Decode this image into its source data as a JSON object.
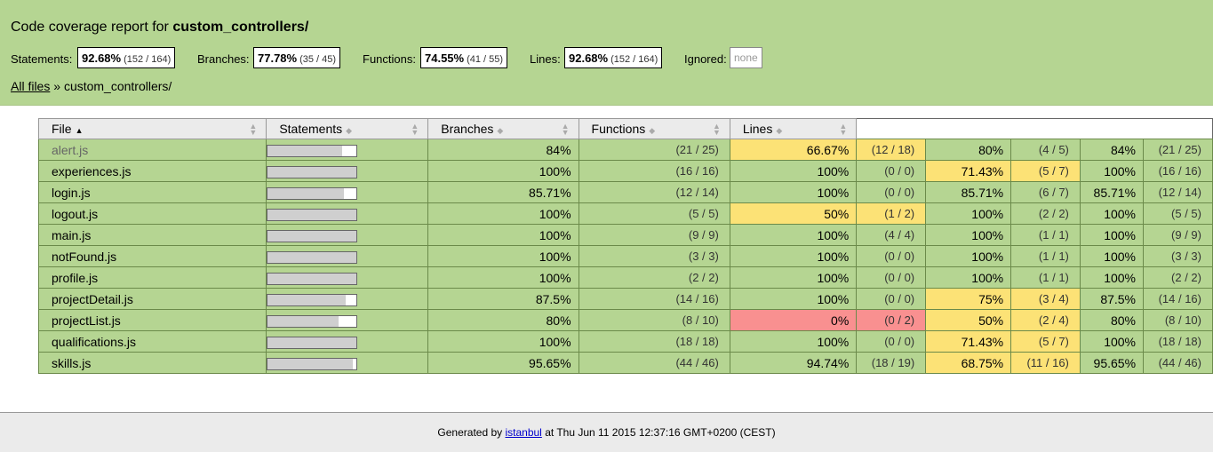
{
  "header": {
    "title_prefix": "Code coverage report for ",
    "title_path": "custom_controllers/",
    "metrics": [
      {
        "label": "Statements:",
        "pct": "92.68%",
        "frac": "(152 / 164)"
      },
      {
        "label": "Branches:",
        "pct": "77.78%",
        "frac": "(35 / 45)"
      },
      {
        "label": "Functions:",
        "pct": "74.55%",
        "frac": "(41 / 55)"
      },
      {
        "label": "Lines:",
        "pct": "92.68%",
        "frac": "(152 / 164)"
      }
    ],
    "ignored": {
      "label": "Ignored:",
      "value": "none"
    },
    "breadcrumb": {
      "link": "All files",
      "sep": " » ",
      "current": "custom_controllers/"
    }
  },
  "table": {
    "headers": {
      "file": "File",
      "statements": "Statements",
      "branches": "Branches",
      "functions": "Functions",
      "lines": "Lines"
    },
    "rows": [
      {
        "file": "alert.js",
        "muted": true,
        "bar": 0.84,
        "s_pct": "84%",
        "s_frac": "(21 / 25)",
        "s_level": "high",
        "b_pct": "66.67%",
        "b_frac": "(12 / 18)",
        "b_level": "medium",
        "f_pct": "80%",
        "f_frac": "(4 / 5)",
        "f_level": "high",
        "l_pct": "84%",
        "l_frac": "(21 / 25)",
        "l_level": "high"
      },
      {
        "file": "experiences.js",
        "bar": 1.0,
        "s_pct": "100%",
        "s_frac": "(16 / 16)",
        "s_level": "high",
        "b_pct": "100%",
        "b_frac": "(0 / 0)",
        "b_level": "high",
        "f_pct": "71.43%",
        "f_frac": "(5 / 7)",
        "f_level": "medium",
        "l_pct": "100%",
        "l_frac": "(16 / 16)",
        "l_level": "high"
      },
      {
        "file": "login.js",
        "bar": 0.8571,
        "s_pct": "85.71%",
        "s_frac": "(12 / 14)",
        "s_level": "high",
        "b_pct": "100%",
        "b_frac": "(0 / 0)",
        "b_level": "high",
        "f_pct": "85.71%",
        "f_frac": "(6 / 7)",
        "f_level": "high",
        "l_pct": "85.71%",
        "l_frac": "(12 / 14)",
        "l_level": "high"
      },
      {
        "file": "logout.js",
        "bar": 1.0,
        "s_pct": "100%",
        "s_frac": "(5 / 5)",
        "s_level": "high",
        "b_pct": "50%",
        "b_frac": "(1 / 2)",
        "b_level": "medium",
        "f_pct": "100%",
        "f_frac": "(2 / 2)",
        "f_level": "high",
        "l_pct": "100%",
        "l_frac": "(5 / 5)",
        "l_level": "high"
      },
      {
        "file": "main.js",
        "bar": 1.0,
        "s_pct": "100%",
        "s_frac": "(9 / 9)",
        "s_level": "high",
        "b_pct": "100%",
        "b_frac": "(4 / 4)",
        "b_level": "high",
        "f_pct": "100%",
        "f_frac": "(1 / 1)",
        "f_level": "high",
        "l_pct": "100%",
        "l_frac": "(9 / 9)",
        "l_level": "high"
      },
      {
        "file": "notFound.js",
        "bar": 1.0,
        "s_pct": "100%",
        "s_frac": "(3 / 3)",
        "s_level": "high",
        "b_pct": "100%",
        "b_frac": "(0 / 0)",
        "b_level": "high",
        "f_pct": "100%",
        "f_frac": "(1 / 1)",
        "f_level": "high",
        "l_pct": "100%",
        "l_frac": "(3 / 3)",
        "l_level": "high"
      },
      {
        "file": "profile.js",
        "bar": 1.0,
        "s_pct": "100%",
        "s_frac": "(2 / 2)",
        "s_level": "high",
        "b_pct": "100%",
        "b_frac": "(0 / 0)",
        "b_level": "high",
        "f_pct": "100%",
        "f_frac": "(1 / 1)",
        "f_level": "high",
        "l_pct": "100%",
        "l_frac": "(2 / 2)",
        "l_level": "high"
      },
      {
        "file": "projectDetail.js",
        "bar": 0.875,
        "s_pct": "87.5%",
        "s_frac": "(14 / 16)",
        "s_level": "high",
        "b_pct": "100%",
        "b_frac": "(0 / 0)",
        "b_level": "high",
        "f_pct": "75%",
        "f_frac": "(3 / 4)",
        "f_level": "medium",
        "l_pct": "87.5%",
        "l_frac": "(14 / 16)",
        "l_level": "high"
      },
      {
        "file": "projectList.js",
        "bar": 0.8,
        "s_pct": "80%",
        "s_frac": "(8 / 10)",
        "s_level": "high",
        "b_pct": "0%",
        "b_frac": "(0 / 2)",
        "b_level": "low",
        "f_pct": "50%",
        "f_frac": "(2 / 4)",
        "f_level": "medium",
        "l_pct": "80%",
        "l_frac": "(8 / 10)",
        "l_level": "high"
      },
      {
        "file": "qualifications.js",
        "bar": 1.0,
        "s_pct": "100%",
        "s_frac": "(18 / 18)",
        "s_level": "high",
        "b_pct": "100%",
        "b_frac": "(0 / 0)",
        "b_level": "high",
        "f_pct": "71.43%",
        "f_frac": "(5 / 7)",
        "f_level": "medium",
        "l_pct": "100%",
        "l_frac": "(18 / 18)",
        "l_level": "high"
      },
      {
        "file": "skills.js",
        "bar": 0.9565,
        "s_pct": "95.65%",
        "s_frac": "(44 / 46)",
        "s_level": "high",
        "b_pct": "94.74%",
        "b_frac": "(18 / 19)",
        "b_level": "high",
        "f_pct": "68.75%",
        "f_frac": "(11 / 16)",
        "f_level": "medium",
        "l_pct": "95.65%",
        "l_frac": "(44 / 46)",
        "l_level": "high"
      }
    ]
  },
  "footer": {
    "prefix": "Generated by ",
    "link": "istanbul",
    "suffix": " at Thu Jun 11 2015 12:37:16 GMT+0200 (CEST)"
  },
  "colors": {
    "high": "#b5d592",
    "medium": "#fce276",
    "low": "#f99090"
  }
}
